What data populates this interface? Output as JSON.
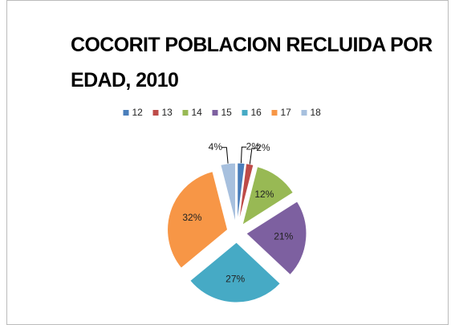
{
  "chart_data": {
    "type": "pie",
    "title": "COCORIT POBLACION RECLUIDA POR EDAD, 2010",
    "categories": [
      "12",
      "13",
      "14",
      "15",
      "16",
      "17",
      "18"
    ],
    "values": [
      2,
      2,
      12,
      21,
      27,
      32,
      4
    ],
    "value_labels": [
      "2%",
      "2%",
      "12%",
      "21%",
      "27%",
      "32%",
      "4%"
    ],
    "colors": [
      "#4a7ebb",
      "#be4b48",
      "#98b954",
      "#7d60a0",
      "#46aac5",
      "#f79646",
      "#a7c0de"
    ],
    "legend": "top"
  }
}
